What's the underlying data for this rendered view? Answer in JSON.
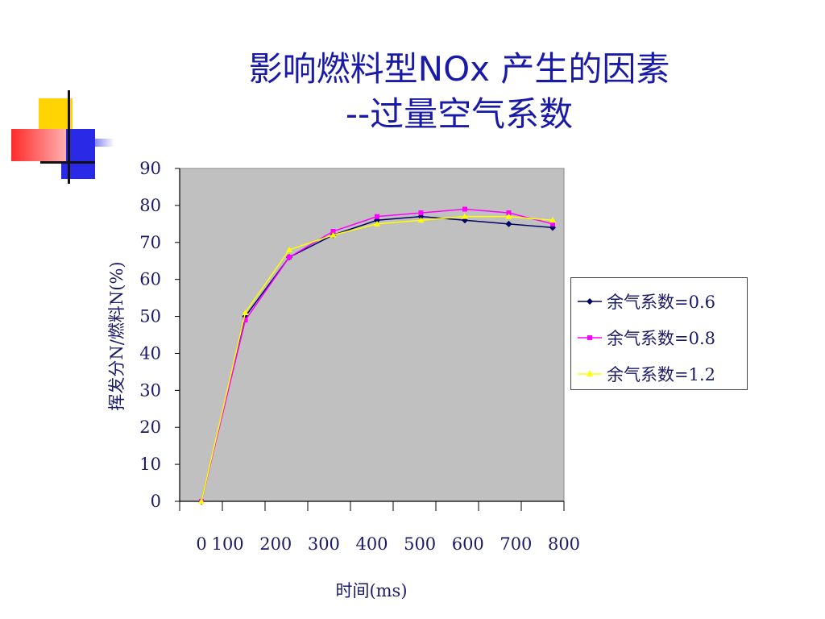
{
  "slide": {
    "title_line1": "影响燃料型NOx 产生的因素",
    "title_line2": "--过量空气系数"
  },
  "colors": {
    "title": "#1a1aa8",
    "plot_bg": "#c0c0c0",
    "text": "#1a1a66",
    "deco_yellow": "#ffd400",
    "deco_blue": "#2a2ae6",
    "deco_red": "#ff3b3b"
  },
  "chart_data": {
    "type": "line",
    "x": [
      0,
      100,
      200,
      300,
      400,
      500,
      600,
      700,
      800
    ],
    "xticks": [
      "0",
      "100",
      "200",
      "300",
      "400",
      "500",
      "600",
      "700",
      "800"
    ],
    "yticks": [
      "0",
      "10",
      "20",
      "30",
      "40",
      "50",
      "60",
      "70",
      "80",
      "90"
    ],
    "xlabel": "时间(ms)",
    "ylabel": "挥发分N/燃料N(%)",
    "ylim": [
      0,
      90
    ],
    "grid": false,
    "legend_position": "right",
    "series": [
      {
        "name": "余气系数=0.6",
        "color": "#000066",
        "marker": "diamond",
        "x": [
          0,
          100,
          200,
          300,
          400,
          500,
          600,
          700,
          800
        ],
        "values": [
          0,
          50,
          66,
          72,
          76,
          77,
          76,
          75,
          74
        ]
      },
      {
        "name": "余气系数=0.8",
        "color": "#ff00ff",
        "marker": "square",
        "x": [
          0,
          100,
          200,
          300,
          400,
          500,
          600,
          700,
          800
        ],
        "values": [
          0,
          49,
          66,
          73,
          77,
          78,
          79,
          78,
          75
        ]
      },
      {
        "name": "余气系数=1.2",
        "color": "#ffff00",
        "marker": "triangle",
        "x": [
          0,
          100,
          200,
          300,
          400,
          500,
          600,
          700,
          800
        ],
        "values": [
          0,
          51,
          68,
          72,
          75,
          76,
          77,
          77,
          76
        ]
      }
    ]
  }
}
